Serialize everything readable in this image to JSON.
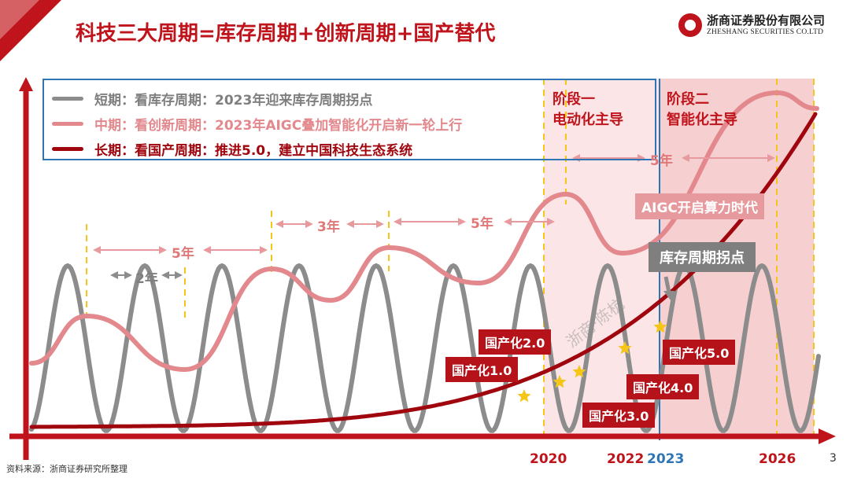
{
  "header": {
    "title": "科技三大周期=库存周期+创新周期+国产替代",
    "logo_cn": "浙商证券股份有限公司",
    "logo_en": "ZHESHANG SECURITIES CO.LTD"
  },
  "colors": {
    "brand_red": "#c0141c",
    "gray": "#8c8c8c",
    "pink": "#e3888d",
    "blue": "#2e75b6",
    "shade": "#fbe5e6",
    "shade2": "#f6cfd1",
    "star": "#f5c518"
  },
  "legend": [
    {
      "label": "短期：看库存周期：2023年迎来库存周期拐点",
      "color": "#8c8c8c"
    },
    {
      "label": "中期：看创新周期：2023年AIGC叠加智能化开启新一轮上行",
      "color": "#e3888d"
    },
    {
      "label": "长期：看国产周期：推进5.0，建立中国科技生态系统",
      "color": "#a0060e"
    }
  ],
  "stages": {
    "stage1": [
      "阶段一",
      "电动化主导"
    ],
    "stage2": [
      "阶段二",
      "智能化主导"
    ]
  },
  "callouts": {
    "aigc": "AIGC开启算力时代",
    "inventory": "库存周期拐点"
  },
  "localization": [
    {
      "label": "国产化1.0"
    },
    {
      "label": "国产化2.0"
    },
    {
      "label": "国产化3.0"
    },
    {
      "label": "国产化4.0"
    },
    {
      "label": "国产化5.0"
    }
  ],
  "gaps": {
    "g2": "2年",
    "g5a": "5年",
    "g3": "3年",
    "g5b": "5年",
    "g5c": "5年"
  },
  "watermark": "浙商·陈杭",
  "footer": {
    "source": "资料来源：浙商证券研究所整理",
    "page": "3"
  },
  "chart_data": {
    "type": "line",
    "title": "科技三大周期=库存周期+创新周期+国产替代",
    "x_ticks": [
      "2020",
      "2022",
      "2023",
      "2026"
    ],
    "series": [
      {
        "name": "短期：看库存周期",
        "shape": "oscillation",
        "period_years": 2,
        "peaks": 10
      },
      {
        "name": "中期：看创新周期",
        "shape": "rising oscillation",
        "peak_gaps_years": [
          5,
          3,
          5,
          5
        ]
      },
      {
        "name": "长期：看国产周期",
        "shape": "exponential rise",
        "milestones": [
          "国产化1.0",
          "国产化2.0",
          "国产化3.0",
          "国产化4.0",
          "国产化5.0"
        ]
      }
    ]
  }
}
